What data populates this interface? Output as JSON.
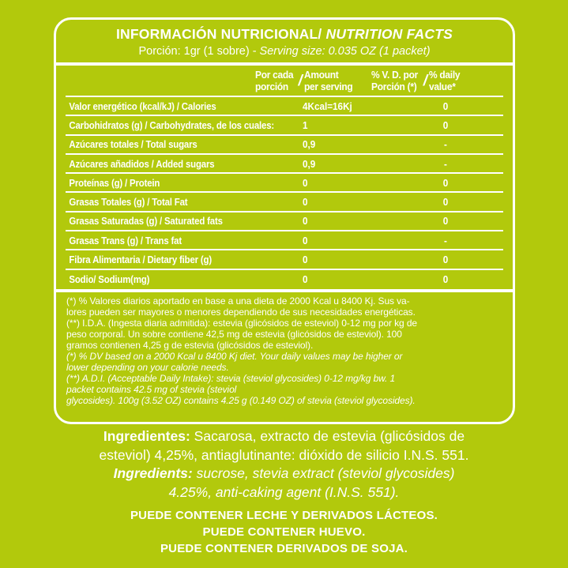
{
  "theme": {
    "background_color": "#b2c90c",
    "text_color": "#ffffff"
  },
  "panel": {
    "title_es": "INFORMACIÓN NUTRICIONAL/",
    "title_en": "NUTRITION FACTS",
    "serving_es": "Porción: 1gr (1 sobre) -",
    "serving_en": "Serving size: 0.035 OZ (1 packet)",
    "columns": {
      "slash": "/",
      "amount_es": "Por cada\nporción",
      "amount_en": "Amount\nper serving",
      "dv_es": "% V. D. por\nPorción (*)",
      "dv_en": "% daily\nvalue*"
    },
    "rows": [
      {
        "name": "Valor energético (kcal/kJ) / Calories",
        "amount": "4Kcal=16Kj",
        "dv": "0"
      },
      {
        "name": "Carbohidratos (g) / Carbohydrates, de los cuales:",
        "amount": "1",
        "dv": "0"
      },
      {
        "name": "Azúcares totales / Total sugars",
        "amount": "0,9",
        "dv": "-"
      },
      {
        "name": "Azúcares añadidos / Added sugars",
        "amount": "0,9",
        "dv": "-"
      },
      {
        "name": "Proteínas (g) / Protein",
        "amount": "0",
        "dv": "0"
      },
      {
        "name": "Grasas Totales (g) / Total Fat",
        "amount": "0",
        "dv": "0"
      },
      {
        "name": "Grasas Saturadas (g) / Saturated fats",
        "amount": "0",
        "dv": "0"
      },
      {
        "name": "Grasas Trans (g) / Trans fat",
        "amount": "0",
        "dv": "-"
      },
      {
        "name": "Fibra Alimentaria / Dietary fiber (g)",
        "amount": "0",
        "dv": "0"
      },
      {
        "name": "Sodio/ Sodium(mg)",
        "amount": "0",
        "dv": "0"
      }
    ],
    "footnote_es": "(*) % Valores diarios aportado en base a una dieta de 2000 Kcal u 8400 Kj. Sus va-\nlores pueden ser mayores o menores dependiendo de sus necesidades energéticas.\n(**) I.D.A. (Ingesta diaria admitida): estevia (glicósidos de esteviol) 0-12 mg por kg de\npeso corporal. Un sobre contiene 42,5 mg de estevia (glicósidos de esteviol). 100\ngramos contienen 4,25 g de estevia (glicósidos de esteviol).",
    "footnote_en": "(*) % DV based on a 2000 Kcal u 8400 Kj diet. Your daily values may be higher or\nlower depending on your calorie needs.\n(**) A.D.I. (Acceptable Daily Intake): stevia (steviol glycosides) 0-12 mg/kg bw. 1\npacket contains 42.5 mg of stevia (steviol\nglycosides). 100g (3.52 OZ) contains 4.25 g (0.149 OZ) of stevia (steviol glycosides)."
  },
  "ingredients": {
    "es_label": "Ingredientes:",
    "es_text": "Sacarosa,  extracto de estevia (glicósidos de\nesteviol) 4,25%, antiaglutinante: dióxido de silicio I.N.S. 551.",
    "en_label": "Ingredients:",
    "en_text": "sucrose, stevia extract (steviol glycosides)\n4.25%, anti-caking agent (I.N.S. 551)."
  },
  "allergens": [
    "PUEDE CONTENER LECHE Y DERIVADOS LÁCTEOS.",
    "PUEDE CONTENER HUEVO.",
    "PUEDE CONTENER DERIVADOS DE SOJA."
  ]
}
